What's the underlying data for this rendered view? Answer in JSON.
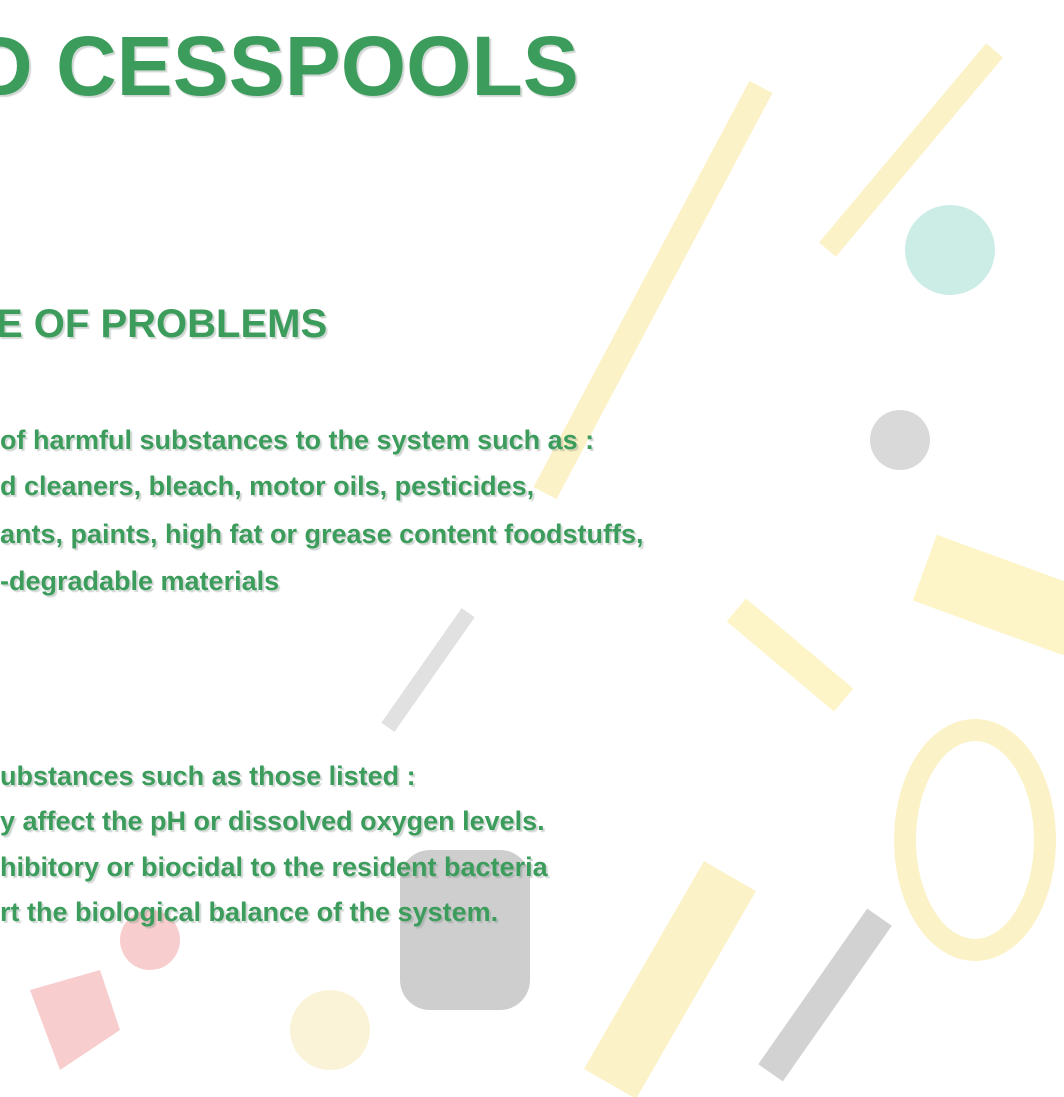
{
  "slide": {
    "title": "D CESSPOOLS",
    "subtitle": "E OF PROBLEMS",
    "paragraph1": [
      "of harmful substances to the system such as :",
      "d cleaners, bleach, motor oils, pesticides,",
      "ants, paints, high fat or grease content foodstuffs,",
      "-degradable materials"
    ],
    "paragraph2": [
      "ubstances such as those listed :",
      "y affect the pH or dissolved oxygen levels.",
      "hibitory or biocidal to the resident bacteria",
      "rt the biological balance of the system."
    ]
  }
}
